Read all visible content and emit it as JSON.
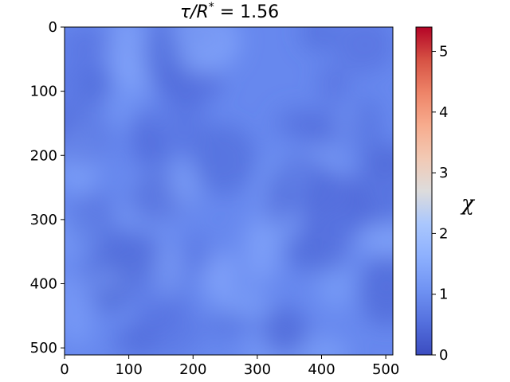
{
  "chart_data": {
    "type": "heatmap",
    "title": "τ/R* = 1.56",
    "title_parts": {
      "lhs": "τ/R",
      "sup": "*",
      "rhs": " = 1.56"
    },
    "x_ticks": [
      0,
      100,
      200,
      300,
      400,
      500
    ],
    "y_ticks": [
      0,
      100,
      200,
      300,
      400,
      500
    ],
    "xlim": [
      0,
      511
    ],
    "ylim": [
      511,
      0
    ],
    "colormap": "coolwarm",
    "colorbar": {
      "label": "χ",
      "range": [
        0,
        5.4
      ],
      "ticks": [
        0,
        1,
        2,
        3,
        4,
        5
      ]
    },
    "field_summary": {
      "mean": 1.0,
      "min_approx": 0.75,
      "max_approx": 1.4
    },
    "grid": false
  }
}
